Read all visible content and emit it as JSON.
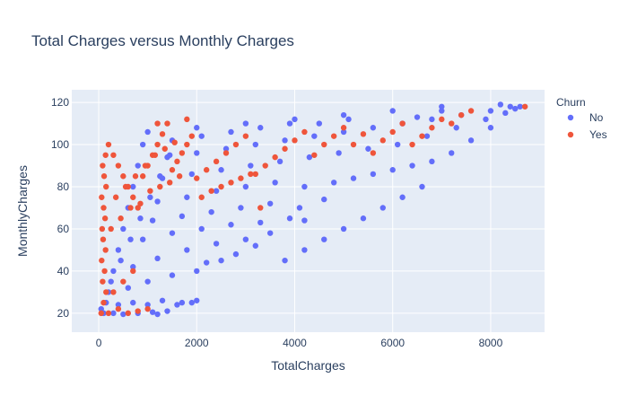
{
  "chart_data": {
    "type": "scatter",
    "title": "Total Charges versus Monthly Charges",
    "xlabel": "TotalCharges",
    "ylabel": "MonthlyCharges",
    "xlim": [
      -550,
      9100
    ],
    "ylim": [
      11,
      126
    ],
    "x_ticks": [
      0,
      2000,
      4000,
      6000,
      8000
    ],
    "y_ticks": [
      20,
      40,
      60,
      80,
      100,
      120
    ],
    "grid": true,
    "plot_background": "#e5ecf6",
    "legend": {
      "title": "Churn",
      "placement": "top-right"
    },
    "series": [
      {
        "name": "No",
        "color": "#636efa",
        "points": [
          [
            100,
            20
          ],
          [
            300,
            20
          ],
          [
            500,
            19.5
          ],
          [
            800,
            20
          ],
          [
            1100,
            20.5
          ],
          [
            1400,
            21
          ],
          [
            1700,
            25
          ],
          [
            2000,
            26
          ],
          [
            150,
            25
          ],
          [
            400,
            24
          ],
          [
            700,
            25
          ],
          [
            1000,
            24
          ],
          [
            1300,
            26
          ],
          [
            1600,
            24
          ],
          [
            1900,
            25
          ],
          [
            1200,
            19.5
          ],
          [
            200,
            30
          ],
          [
            600,
            32
          ],
          [
            1000,
            35
          ],
          [
            1500,
            38
          ],
          [
            2000,
            40
          ],
          [
            2500,
            45
          ],
          [
            2200,
            44
          ],
          [
            2800,
            48
          ],
          [
            300,
            40
          ],
          [
            700,
            42
          ],
          [
            1200,
            46
          ],
          [
            1800,
            50
          ],
          [
            2400,
            53
          ],
          [
            3000,
            55
          ],
          [
            3500,
            58
          ],
          [
            3200,
            52
          ],
          [
            400,
            50
          ],
          [
            900,
            55
          ],
          [
            1500,
            58
          ],
          [
            2100,
            60
          ],
          [
            2700,
            62
          ],
          [
            3300,
            63
          ],
          [
            3900,
            65
          ],
          [
            4200,
            64
          ],
          [
            500,
            60
          ],
          [
            1100,
            64
          ],
          [
            1700,
            66
          ],
          [
            2300,
            68
          ],
          [
            2900,
            70
          ],
          [
            3500,
            72
          ],
          [
            4100,
            70
          ],
          [
            4600,
            74
          ],
          [
            600,
            70
          ],
          [
            1200,
            73
          ],
          [
            1800,
            75
          ],
          [
            2400,
            78
          ],
          [
            3000,
            80
          ],
          [
            3600,
            82
          ],
          [
            4200,
            80
          ],
          [
            4800,
            82
          ],
          [
            5200,
            84
          ],
          [
            5600,
            86
          ],
          [
            6000,
            88
          ],
          [
            6400,
            90
          ],
          [
            6800,
            92
          ],
          [
            7200,
            96
          ],
          [
            7600,
            102
          ],
          [
            8000,
            108
          ],
          [
            700,
            80
          ],
          [
            1300,
            84
          ],
          [
            1900,
            86
          ],
          [
            2500,
            88
          ],
          [
            3100,
            90
          ],
          [
            3700,
            92
          ],
          [
            4300,
            94
          ],
          [
            4900,
            96
          ],
          [
            5500,
            98
          ],
          [
            6100,
            100
          ],
          [
            6700,
            104
          ],
          [
            7300,
            108
          ],
          [
            7900,
            112
          ],
          [
            8300,
            115
          ],
          [
            8500,
            117
          ],
          [
            8600,
            118
          ],
          [
            800,
            90
          ],
          [
            1400,
            94
          ],
          [
            2000,
            96
          ],
          [
            2600,
            98
          ],
          [
            3200,
            100
          ],
          [
            3800,
            102
          ],
          [
            4400,
            104
          ],
          [
            5000,
            106
          ],
          [
            5600,
            108
          ],
          [
            6200,
            110
          ],
          [
            6800,
            112
          ],
          [
            7400,
            114
          ],
          [
            8000,
            116
          ],
          [
            8400,
            118
          ],
          [
            7000,
            116
          ],
          [
            6500,
            113
          ],
          [
            900,
            100
          ],
          [
            1500,
            102
          ],
          [
            2100,
            104
          ],
          [
            2700,
            106
          ],
          [
            3300,
            108
          ],
          [
            3900,
            110
          ],
          [
            4500,
            110
          ],
          [
            5100,
            112
          ],
          [
            1000,
            106
          ],
          [
            2000,
            108
          ],
          [
            3000,
            110
          ],
          [
            4000,
            112
          ],
          [
            5000,
            114
          ],
          [
            6000,
            116
          ],
          [
            7000,
            118
          ],
          [
            8200,
            119
          ],
          [
            50,
            22
          ],
          [
            250,
            35
          ],
          [
            450,
            45
          ],
          [
            650,
            55
          ],
          [
            850,
            65
          ],
          [
            1050,
            75
          ],
          [
            1250,
            85
          ],
          [
            1450,
            95
          ],
          [
            3800,
            45
          ],
          [
            4200,
            50
          ],
          [
            4600,
            55
          ],
          [
            5000,
            60
          ],
          [
            5400,
            65
          ],
          [
            5800,
            70
          ],
          [
            6200,
            75
          ],
          [
            6600,
            80
          ]
        ]
      },
      {
        "name": "Yes",
        "color": "#ef553b",
        "points": [
          [
            50,
            20
          ],
          [
            100,
            25
          ],
          [
            150,
            30
          ],
          [
            80,
            35
          ],
          [
            120,
            40
          ],
          [
            60,
            45
          ],
          [
            140,
            50
          ],
          [
            90,
            55
          ],
          [
            70,
            60
          ],
          [
            130,
            65
          ],
          [
            100,
            70
          ],
          [
            60,
            75
          ],
          [
            150,
            80
          ],
          [
            110,
            85
          ],
          [
            80,
            90
          ],
          [
            140,
            95
          ],
          [
            200,
            100
          ],
          [
            300,
            95
          ],
          [
            400,
            90
          ],
          [
            500,
            85
          ],
          [
            600,
            80
          ],
          [
            700,
            75
          ],
          [
            800,
            70
          ],
          [
            900,
            85
          ],
          [
            1000,
            90
          ],
          [
            1100,
            95
          ],
          [
            1200,
            100
          ],
          [
            1300,
            105
          ],
          [
            1400,
            110
          ],
          [
            1500,
            88
          ],
          [
            1600,
            92
          ],
          [
            1700,
            96
          ],
          [
            1800,
            100
          ],
          [
            1900,
            104
          ],
          [
            2000,
            84
          ],
          [
            2200,
            88
          ],
          [
            2400,
            92
          ],
          [
            2600,
            96
          ],
          [
            2800,
            100
          ],
          [
            3000,
            104
          ],
          [
            3200,
            86
          ],
          [
            3400,
            90
          ],
          [
            3600,
            94
          ],
          [
            3800,
            98
          ],
          [
            4000,
            102
          ],
          [
            4200,
            106
          ],
          [
            4400,
            95
          ],
          [
            4600,
            100
          ],
          [
            4800,
            104
          ],
          [
            5000,
            108
          ],
          [
            5200,
            100
          ],
          [
            5400,
            105
          ],
          [
            5600,
            96
          ],
          [
            5800,
            102
          ],
          [
            6000,
            106
          ],
          [
            6200,
            110
          ],
          [
            6400,
            100
          ],
          [
            6600,
            104
          ],
          [
            6800,
            108
          ],
          [
            7000,
            112
          ],
          [
            7200,
            110
          ],
          [
            7400,
            114
          ],
          [
            7600,
            116
          ],
          [
            8700,
            118
          ],
          [
            200,
            20
          ],
          [
            400,
            22
          ],
          [
            600,
            20
          ],
          [
            800,
            21
          ],
          [
            1000,
            22
          ],
          [
            300,
            30
          ],
          [
            500,
            35
          ],
          [
            700,
            40
          ],
          [
            250,
            60
          ],
          [
            450,
            65
          ],
          [
            650,
            70
          ],
          [
            850,
            72
          ],
          [
            1050,
            78
          ],
          [
            1250,
            80
          ],
          [
            1450,
            82
          ],
          [
            1650,
            85
          ],
          [
            2100,
            75
          ],
          [
            2300,
            78
          ],
          [
            2500,
            80
          ],
          [
            2700,
            82
          ],
          [
            2900,
            84
          ],
          [
            3100,
            86
          ],
          [
            1200,
            110
          ],
          [
            1800,
            112
          ],
          [
            350,
            75
          ],
          [
            550,
            80
          ],
          [
            750,
            85
          ],
          [
            950,
            90
          ],
          [
            1150,
            95
          ],
          [
            1350,
            98
          ],
          [
            1550,
            101
          ],
          [
            3300,
            70
          ]
        ]
      }
    ]
  }
}
